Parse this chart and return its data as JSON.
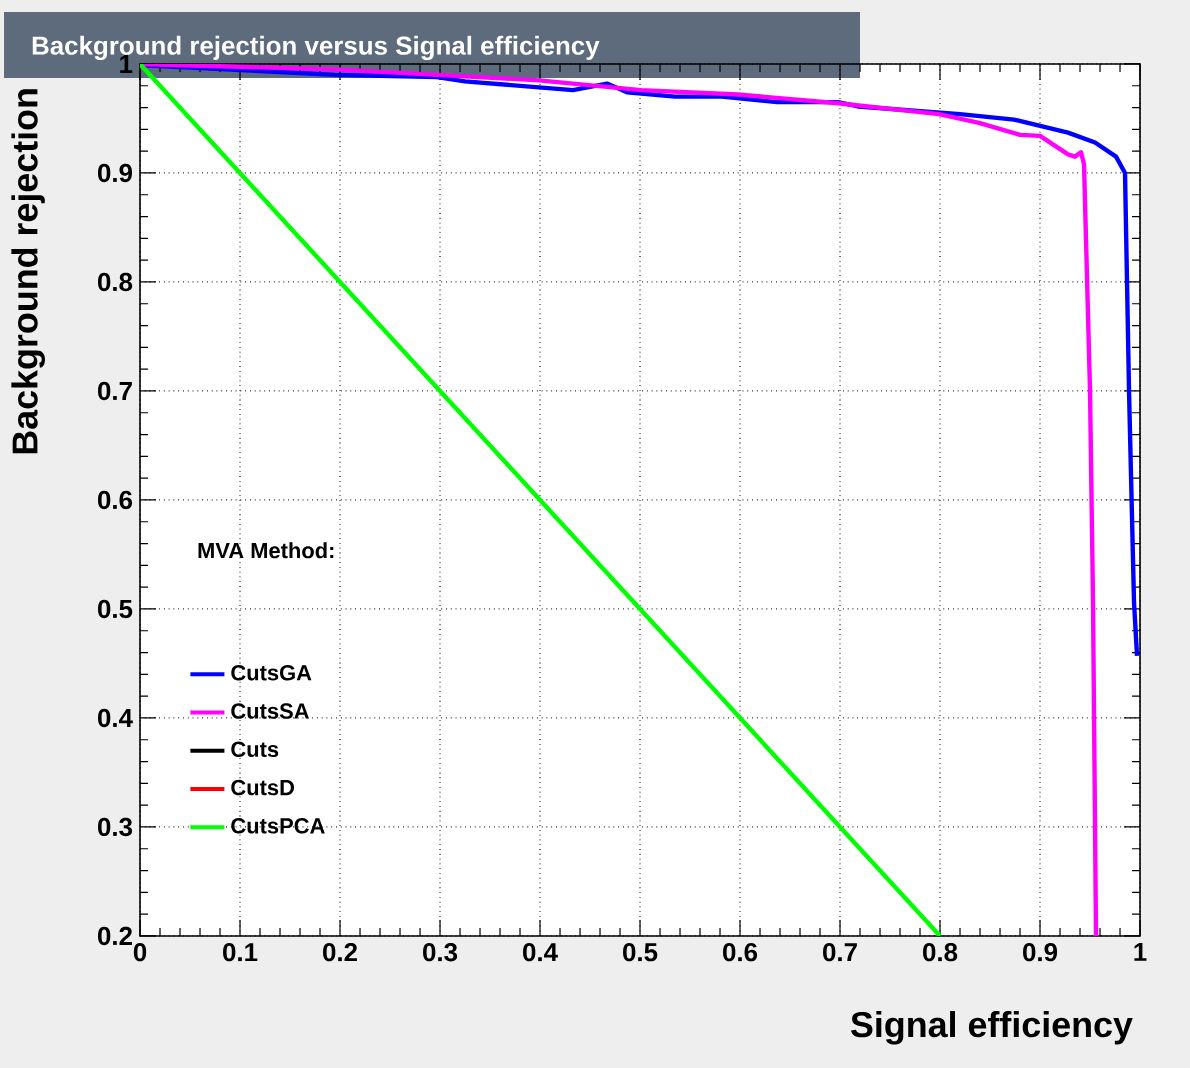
{
  "chart_data": {
    "type": "line",
    "title": "Background rejection versus Signal efficiency",
    "xlabel": "Signal efficiency",
    "ylabel": "Background rejection",
    "legend_title": "MVA Method:",
    "xlim": [
      0,
      1
    ],
    "ylim": [
      0.2,
      1
    ],
    "xticks": [
      0,
      0.1,
      0.2,
      0.3,
      0.4,
      0.5,
      0.6,
      0.7,
      0.8,
      0.9,
      1
    ],
    "yticks": [
      0.2,
      0.3,
      0.4,
      0.5,
      0.6,
      0.7,
      0.8,
      0.9,
      1
    ],
    "grid": true,
    "legend": "bottom left",
    "marker": "none",
    "line_style": "solid",
    "series": [
      {
        "name": "CutsGA",
        "color": "#0000ff",
        "x": [
          0,
          0.195,
          0.297,
          0.325,
          0.433,
          0.467,
          0.487,
          0.535,
          0.582,
          0.637,
          0.698,
          0.718,
          0.82,
          0.874,
          0.928,
          0.955,
          0.976,
          0.985,
          0.989,
          0.994,
          0.997
        ],
        "values": [
          0.999,
          0.99,
          0.988,
          0.984,
          0.976,
          0.982,
          0.974,
          0.97,
          0.97,
          0.965,
          0.965,
          0.961,
          0.954,
          0.949,
          0.937,
          0.928,
          0.915,
          0.9,
          0.7,
          0.506,
          0.457
        ]
      },
      {
        "name": "CutsSA",
        "color": "#ff00ff",
        "x": [
          0,
          0.195,
          0.297,
          0.399,
          0.501,
          0.598,
          0.698,
          0.799,
          0.839,
          0.88,
          0.9,
          0.928,
          0.935,
          0.941,
          0.944,
          0.95,
          0.953,
          0.956
        ],
        "values": [
          1.0,
          0.995,
          0.99,
          0.985,
          0.976,
          0.972,
          0.964,
          0.954,
          0.946,
          0.935,
          0.934,
          0.917,
          0.915,
          0.919,
          0.908,
          0.7,
          0.506,
          0.2
        ]
      },
      {
        "name": "Cuts",
        "color": "#000000",
        "values": [
          null
        ]
      },
      {
        "name": "CutsD",
        "color": "#ff0000",
        "values": [
          null
        ]
      },
      {
        "name": "CutsPCA",
        "color": "#00ff00",
        "x": [
          0,
          0.8
        ],
        "values": [
          1.0,
          0.2
        ]
      }
    ]
  }
}
